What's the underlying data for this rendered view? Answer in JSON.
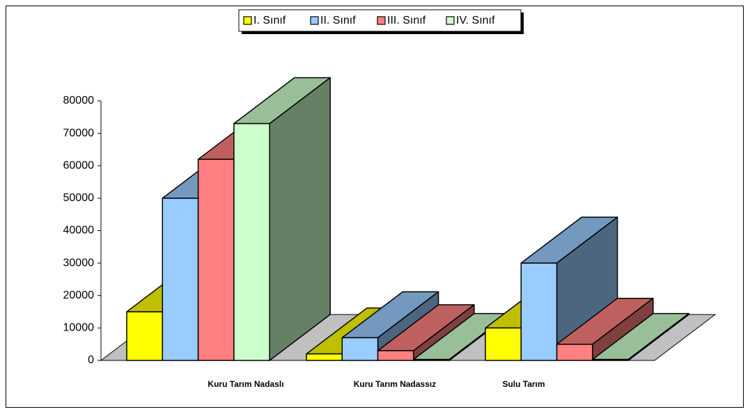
{
  "chart_data": {
    "type": "bar3d",
    "categories": [
      "Kuru Tarım Nadaslı",
      "Kuru Tarım Nadassız",
      "Sulu Tarım"
    ],
    "series": [
      {
        "name": "I. Sınıf",
        "color": "#ffff00",
        "values": [
          15000,
          2000,
          10000
        ]
      },
      {
        "name": "II. Sınıf",
        "color": "#99ccff",
        "values": [
          50000,
          7000,
          30000
        ]
      },
      {
        "name": "III. Sınıf",
        "color": "#ff8080",
        "values": [
          62000,
          3000,
          5000
        ]
      },
      {
        "name": "IV. Sınıf",
        "color": "#ccffcc",
        "values": [
          73000,
          300,
          300
        ]
      }
    ],
    "ylim": [
      0,
      80000
    ],
    "yticks": [
      0,
      10000,
      20000,
      30000,
      40000,
      50000,
      60000,
      70000,
      80000
    ],
    "legend": "top"
  }
}
